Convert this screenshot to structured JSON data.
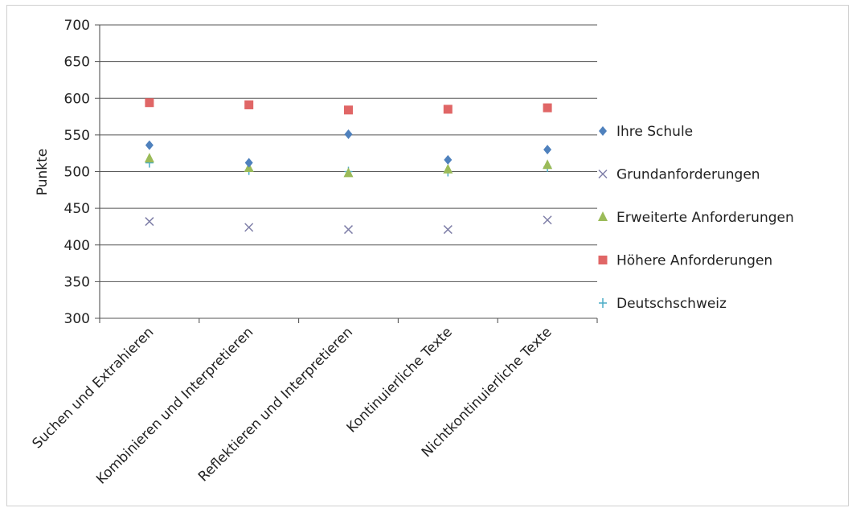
{
  "chart_data": {
    "type": "scatter",
    "ylabel": "Punkte",
    "ylim": [
      300,
      700
    ],
    "yticks": [
      300,
      350,
      400,
      450,
      500,
      550,
      600,
      650,
      700
    ],
    "grid": true,
    "legend_position": "right",
    "categories": [
      "Suchen und Extrahieren",
      "Kombinieren und Interpretieren",
      "Reflektieren und Interpretieren",
      "Kontinuierliche Texte",
      "Nichtkontinuierliche Texte"
    ],
    "series": [
      {
        "name": "Ihre Schule",
        "marker": "diamond",
        "color": "#4f81bd",
        "values": [
          536,
          512,
          551,
          516,
          530
        ]
      },
      {
        "name": "Grundanforderungen",
        "marker": "x",
        "color": "#7f7fa8",
        "values": [
          432,
          424,
          421,
          421,
          434
        ]
      },
      {
        "name": "Erweiterte Anforderungen",
        "marker": "triangle",
        "color": "#9bbb59",
        "values": [
          518,
          505,
          498,
          503,
          509
        ]
      },
      {
        "name": "Höhere Anforderungen",
        "marker": "square",
        "color": "#e06666",
        "values": [
          594,
          591,
          584,
          585,
          587
        ]
      },
      {
        "name": "Deutschschweiz",
        "marker": "plus",
        "color": "#4bacc6",
        "values": [
          512,
          502,
          500,
          500,
          506
        ]
      }
    ]
  }
}
